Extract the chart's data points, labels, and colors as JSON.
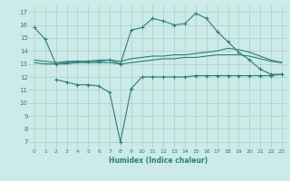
{
  "xlabel": "Humidex (Indice chaleur)",
  "xlim": [
    -0.5,
    23.5
  ],
  "ylim": [
    6.5,
    17.5
  ],
  "yticks": [
    7,
    8,
    9,
    10,
    11,
    12,
    13,
    14,
    15,
    16,
    17
  ],
  "xticks": [
    0,
    1,
    2,
    3,
    4,
    5,
    6,
    7,
    8,
    9,
    10,
    11,
    12,
    13,
    14,
    15,
    16,
    17,
    18,
    19,
    20,
    21,
    22,
    23
  ],
  "bg_color": "#cceae7",
  "grid_color": "#add4d0",
  "line_color": "#2d7d78",
  "line1_x": [
    0,
    1,
    2,
    3,
    4,
    5,
    6,
    7,
    8,
    9,
    10,
    11,
    12,
    13,
    14,
    15,
    16,
    17,
    18,
    19,
    20,
    21,
    22,
    23
  ],
  "line1_y": [
    15.8,
    14.9,
    13.0,
    13.1,
    13.2,
    13.2,
    13.2,
    13.3,
    13.0,
    15.6,
    15.8,
    16.5,
    16.3,
    16.0,
    16.1,
    16.9,
    16.5,
    15.5,
    14.7,
    13.9,
    13.3,
    12.6,
    12.2,
    12.2
  ],
  "line2_x": [
    0,
    1,
    2,
    3,
    4,
    5,
    6,
    7,
    8,
    9,
    10,
    11,
    12,
    13,
    14,
    15,
    16,
    17,
    18,
    19,
    20,
    21,
    22,
    23
  ],
  "line2_y": [
    13.3,
    13.2,
    13.1,
    13.2,
    13.2,
    13.2,
    13.3,
    13.3,
    13.2,
    13.4,
    13.5,
    13.6,
    13.6,
    13.7,
    13.7,
    13.8,
    13.9,
    14.0,
    14.2,
    14.1,
    13.9,
    13.6,
    13.3,
    13.1
  ],
  "line3_x": [
    0,
    1,
    2,
    3,
    4,
    5,
    6,
    7,
    8,
    9,
    10,
    11,
    12,
    13,
    14,
    15,
    16,
    17,
    18,
    19,
    20,
    21,
    22,
    23
  ],
  "line3_y": [
    13.1,
    13.0,
    13.0,
    13.0,
    13.1,
    13.1,
    13.1,
    13.1,
    13.0,
    13.1,
    13.2,
    13.3,
    13.4,
    13.4,
    13.5,
    13.5,
    13.6,
    13.7,
    13.7,
    13.7,
    13.6,
    13.4,
    13.2,
    13.1
  ],
  "line4_x": [
    2,
    3,
    4,
    5,
    6,
    7,
    8,
    9,
    10,
    11,
    12,
    13,
    14,
    15,
    16,
    17,
    18,
    19,
    20,
    21,
    22,
    23
  ],
  "line4_y": [
    11.8,
    11.6,
    11.4,
    11.4,
    11.3,
    10.8,
    7.0,
    11.1,
    12.0,
    12.0,
    12.0,
    12.0,
    12.0,
    12.1,
    12.1,
    12.1,
    12.1,
    12.1,
    12.1,
    12.1,
    12.1,
    12.2
  ]
}
